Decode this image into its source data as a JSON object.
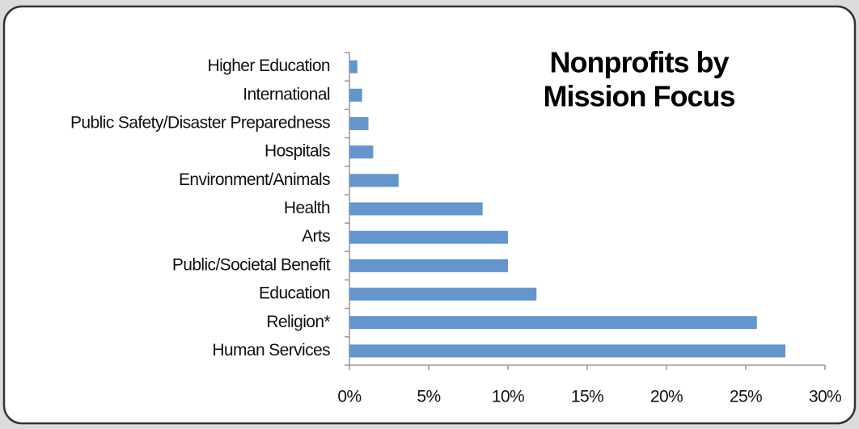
{
  "chart_data": {
    "type": "hbar",
    "title": [
      "Nonprofits by",
      "Mission Focus"
    ],
    "categories": [
      "Higher Education",
      "International",
      "Public Safety/Disaster Preparedness",
      "Hospitals",
      "Environment/Animals",
      "Health",
      "Arts",
      "Public/Societal Benefit",
      "Education",
      "Religion*",
      "Human Services"
    ],
    "values": [
      0.5,
      0.8,
      1.2,
      1.5,
      3.1,
      8.4,
      10.0,
      10.0,
      11.8,
      25.7,
      27.5
    ],
    "color": "#6495cd",
    "xlim": [
      0,
      30
    ],
    "xticks": [
      {
        "value": 0,
        "label": "0%"
      },
      {
        "value": 5,
        "label": "5%"
      },
      {
        "value": 10,
        "label": "10%"
      },
      {
        "value": 15,
        "label": "15%"
      },
      {
        "value": 20,
        "label": "20%"
      },
      {
        "value": 25,
        "label": "25%"
      },
      {
        "value": 30,
        "label": "30%"
      }
    ],
    "grid": false
  }
}
